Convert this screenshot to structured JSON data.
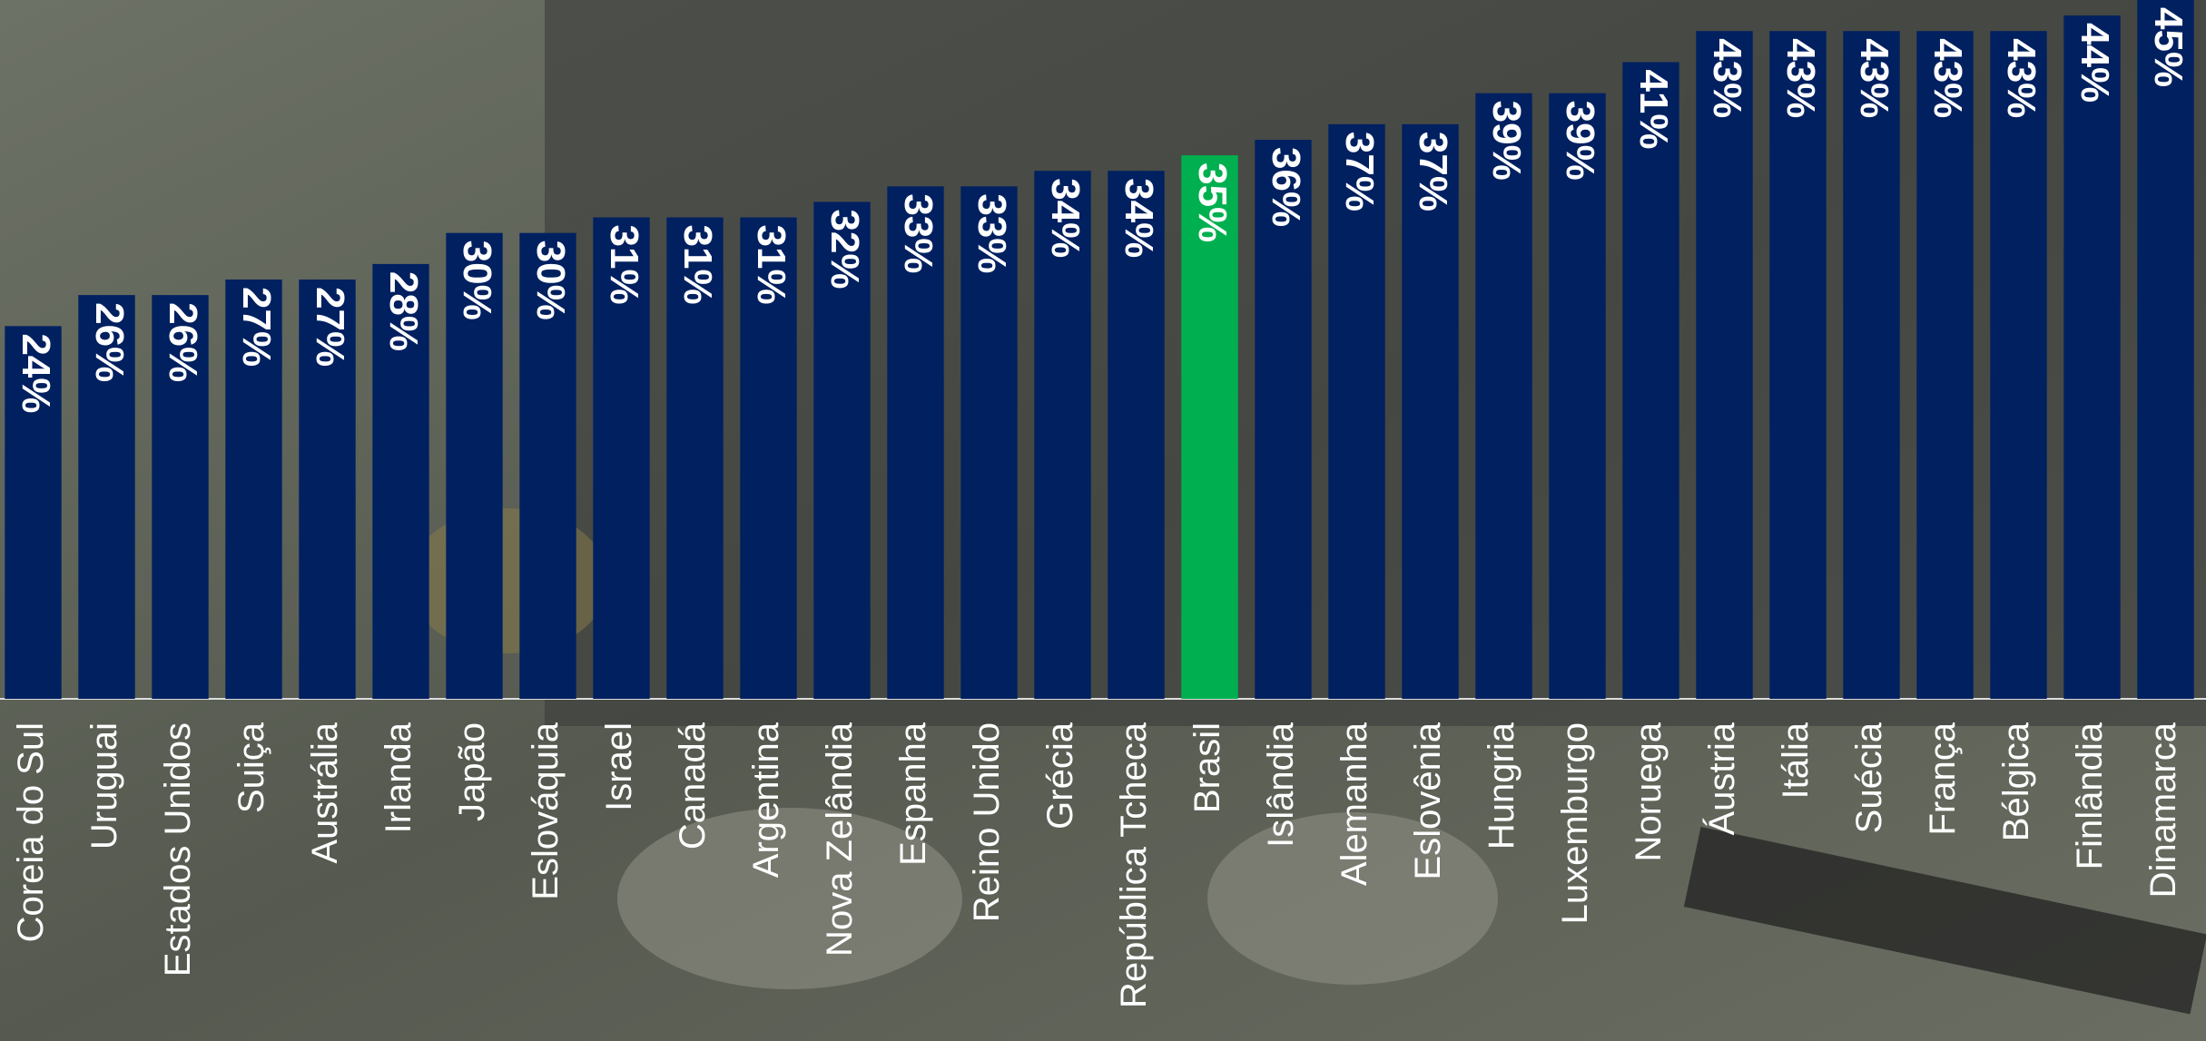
{
  "chart_data": {
    "type": "bar",
    "categories": [
      "Coreia do Sul",
      "Uruguai",
      "Estados Unidos",
      "Suiça",
      "Austrália",
      "Irlanda",
      "Japão",
      "Eslováquia",
      "Israel",
      "Canadá",
      "Argentina",
      "Nova Zelândia",
      "Espanha",
      "Reino Unido",
      "Grécia",
      "República Tcheca",
      "Brasil",
      "Islândia",
      "Alemanha",
      "Eslovênia",
      "Hungria",
      "Luxemburgo",
      "Noruega",
      "Áustria",
      "Itália",
      "Suécia",
      "França",
      "Bélgica",
      "Finlândia",
      "Dinamarca"
    ],
    "values": [
      24,
      26,
      26,
      27,
      27,
      28,
      30,
      30,
      31,
      31,
      31,
      32,
      33,
      33,
      34,
      34,
      35,
      36,
      37,
      37,
      39,
      39,
      41,
      43,
      43,
      43,
      43,
      43,
      44,
      45
    ],
    "value_labels": [
      "24%",
      "26%",
      "26%",
      "27%",
      "27%",
      "28%",
      "30%",
      "30%",
      "31%",
      "31%",
      "31%",
      "32%",
      "33%",
      "33%",
      "34%",
      "34%",
      "35%",
      "36%",
      "37%",
      "37%",
      "39%",
      "39%",
      "41%",
      "43%",
      "43%",
      "43%",
      "43%",
      "43%",
      "44%",
      "45%"
    ],
    "colors": [
      "#002060",
      "#002060",
      "#002060",
      "#002060",
      "#002060",
      "#002060",
      "#002060",
      "#002060",
      "#002060",
      "#002060",
      "#002060",
      "#002060",
      "#002060",
      "#002060",
      "#002060",
      "#002060",
      "#00b050",
      "#002060",
      "#002060",
      "#002060",
      "#002060",
      "#002060",
      "#002060",
      "#002060",
      "#002060",
      "#002060",
      "#002060",
      "#002060",
      "#002060",
      "#002060"
    ],
    "ylim": [
      0,
      45
    ]
  }
}
